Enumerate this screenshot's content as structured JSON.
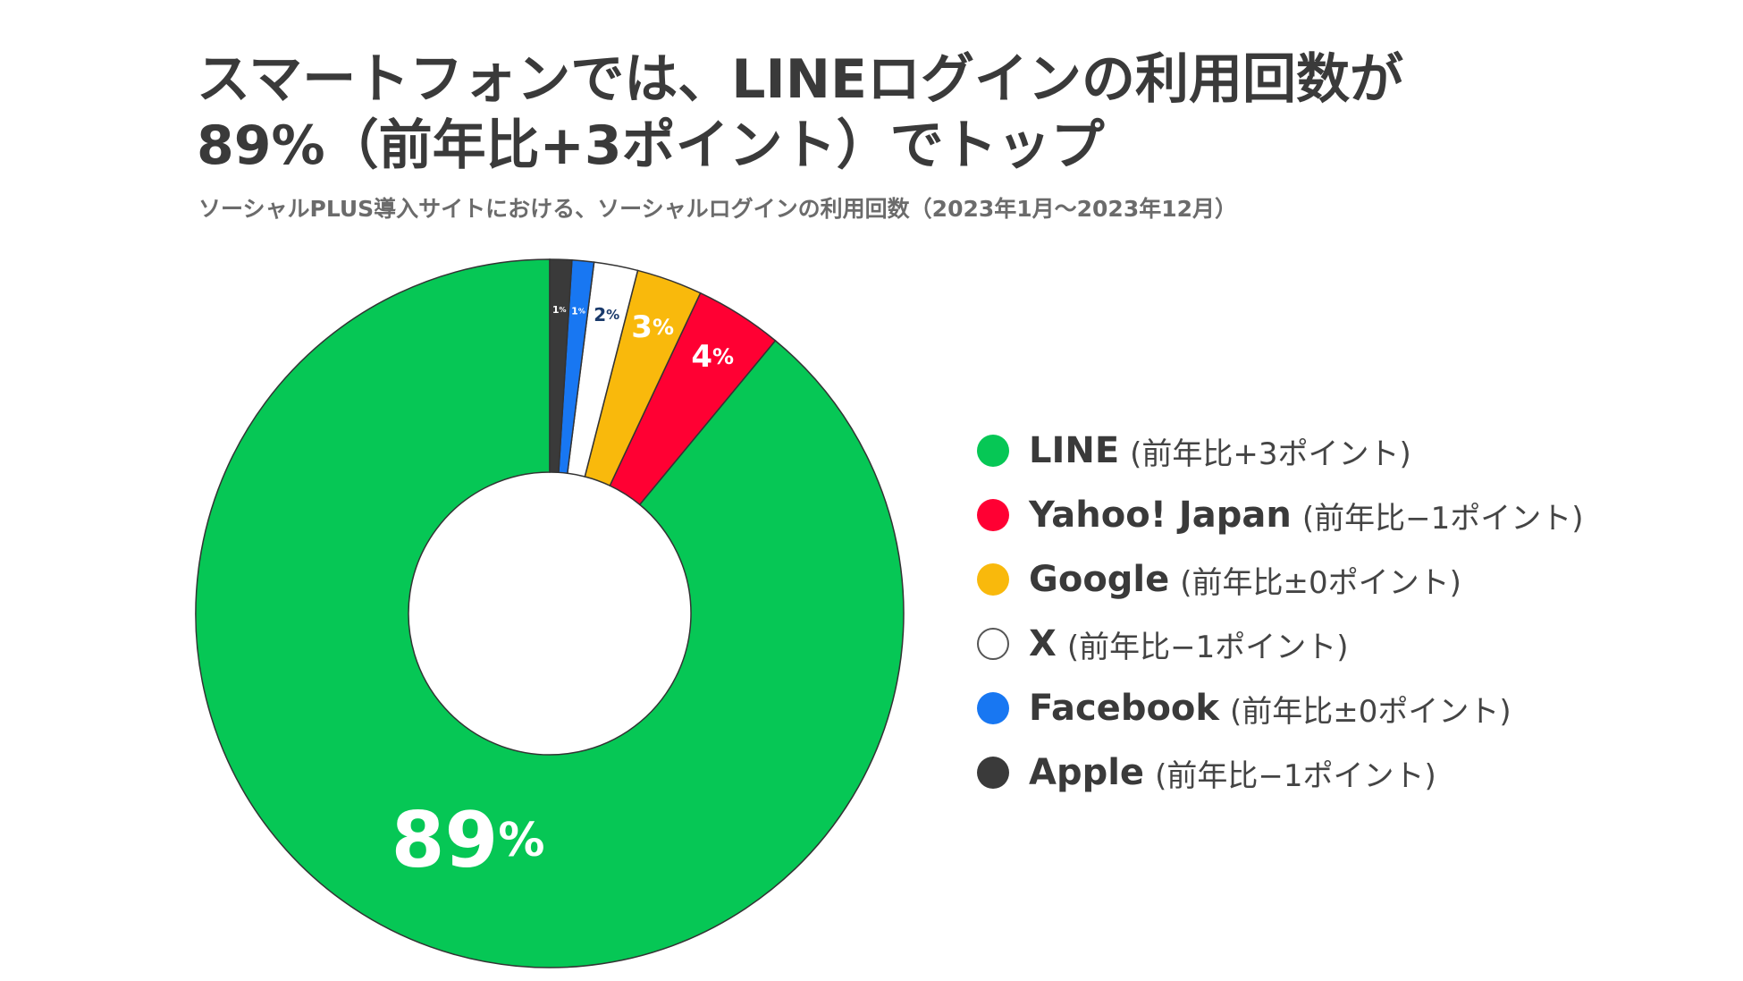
{
  "title_lines": [
    "スマートフォンでは、LINEログインの利用回数が",
    "89%（前年比+3ポイント）でトップ"
  ],
  "subtitle": "ソーシャルPLUS導入サイトにおける、ソーシャルログインの利用回数（2023年1月〜2023年12月）",
  "legend": [
    {
      "name": "LINE",
      "note": "(前年比+3ポイント)",
      "color": "#06c755"
    },
    {
      "name": "Yahoo! Japan",
      "note": "(前年比−1ポイント)",
      "color": "#ff0033"
    },
    {
      "name": "Google",
      "note": "(前年比±0ポイント)",
      "color": "#f9b90c"
    },
    {
      "name": "X",
      "note": "(前年比−1ポイント)",
      "color": "#ffffff"
    },
    {
      "name": "Facebook",
      "note": "(前年比±0ポイント)",
      "color": "#1877f2"
    },
    {
      "name": "Apple",
      "note": "(前年比−1ポイント)",
      "color": "#3a3a3a"
    }
  ],
  "chart_data": {
    "type": "pie",
    "variant": "donut",
    "categories": [
      "LINE",
      "Yahoo! Japan",
      "Google",
      "X",
      "Facebook",
      "Apple"
    ],
    "values": [
      89,
      4,
      3,
      2,
      1,
      1
    ],
    "value_labels": [
      "89",
      "4",
      "3",
      "2",
      "1",
      "1"
    ],
    "unit": "%",
    "colors": [
      "#06c755",
      "#ff0033",
      "#f9b90c",
      "#ffffff",
      "#1877f2",
      "#3a3a3a"
    ],
    "label_colors": [
      "#ffffff",
      "#ffffff",
      "#ffffff",
      "#1a3a6b",
      "#ffffff",
      "#ffffff"
    ],
    "order": "counter-clockwise from top",
    "legend_position": "right"
  }
}
